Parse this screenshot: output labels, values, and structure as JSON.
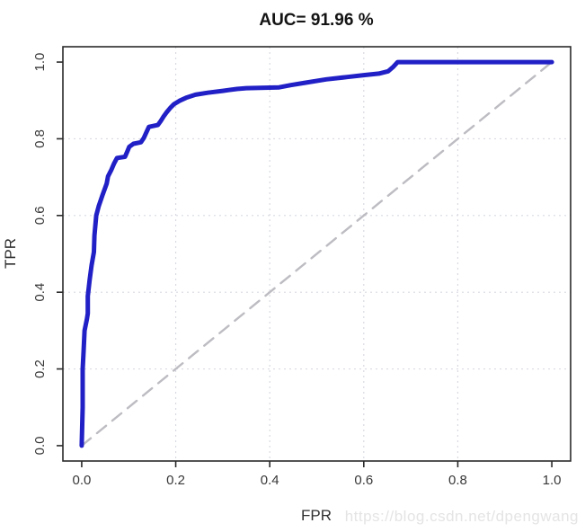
{
  "watermark": {
    "text": "https://blog.csdn.net/dpengwang"
  },
  "colors": {
    "roc_curve": "#2120c6",
    "diagonal": "#bcbcc2",
    "gridline": "#d9dae2",
    "axis": "#2a2a2a",
    "background": "#ffffff"
  },
  "chart_data": {
    "type": "line",
    "title": "AUC= 91.96 %",
    "xlabel": "FPR",
    "ylabel": "TPR",
    "auc_percent": 91.96,
    "xlim": [
      -0.04,
      1.04
    ],
    "ylim": [
      -0.04,
      1.04
    ],
    "x_ticks": [
      0.0,
      0.2,
      0.4,
      0.6,
      0.8,
      1.0
    ],
    "y_ticks": [
      0.0,
      0.2,
      0.4,
      0.6,
      0.8,
      1.0
    ],
    "grid_ticks": [
      0.2,
      0.4,
      0.6,
      0.8
    ],
    "grid": true,
    "legend_position": "none",
    "series": [
      {
        "name": "chance-diagonal",
        "label": "Random classifier diagonal",
        "color": "#bcbcc2",
        "width": 2.4,
        "style": "dashed",
        "points": [
          [
            0.0,
            0.0
          ],
          [
            1.0,
            1.0
          ]
        ]
      },
      {
        "name": "roc-curve",
        "label": "ROC curve",
        "color": "#2120c6",
        "width": 5,
        "style": "solid",
        "points": [
          [
            0.0,
            0.0
          ],
          [
            0.002,
            0.1
          ],
          [
            0.002,
            0.2
          ],
          [
            0.004,
            0.245
          ],
          [
            0.006,
            0.3
          ],
          [
            0.011,
            0.33
          ],
          [
            0.013,
            0.345
          ],
          [
            0.013,
            0.39
          ],
          [
            0.017,
            0.433
          ],
          [
            0.021,
            0.47
          ],
          [
            0.026,
            0.505
          ],
          [
            0.027,
            0.548
          ],
          [
            0.031,
            0.6
          ],
          [
            0.036,
            0.624
          ],
          [
            0.044,
            0.652
          ],
          [
            0.053,
            0.683
          ],
          [
            0.056,
            0.702
          ],
          [
            0.063,
            0.719
          ],
          [
            0.069,
            0.736
          ],
          [
            0.075,
            0.75
          ],
          [
            0.092,
            0.753
          ],
          [
            0.097,
            0.767
          ],
          [
            0.101,
            0.779
          ],
          [
            0.11,
            0.787
          ],
          [
            0.126,
            0.791
          ],
          [
            0.132,
            0.802
          ],
          [
            0.138,
            0.818
          ],
          [
            0.143,
            0.831
          ],
          [
            0.162,
            0.836
          ],
          [
            0.168,
            0.846
          ],
          [
            0.174,
            0.858
          ],
          [
            0.18,
            0.868
          ],
          [
            0.188,
            0.88
          ],
          [
            0.196,
            0.89
          ],
          [
            0.208,
            0.899
          ],
          [
            0.222,
            0.907
          ],
          [
            0.242,
            0.915
          ],
          [
            0.268,
            0.92
          ],
          [
            0.3,
            0.925
          ],
          [
            0.33,
            0.93
          ],
          [
            0.35,
            0.932
          ],
          [
            0.42,
            0.934
          ],
          [
            0.445,
            0.94
          ],
          [
            0.475,
            0.946
          ],
          [
            0.52,
            0.955
          ],
          [
            0.565,
            0.961
          ],
          [
            0.6,
            0.966
          ],
          [
            0.632,
            0.97
          ],
          [
            0.652,
            0.976
          ],
          [
            0.663,
            0.988
          ],
          [
            0.672,
            1.0
          ],
          [
            1.0,
            1.0
          ]
        ]
      }
    ]
  }
}
